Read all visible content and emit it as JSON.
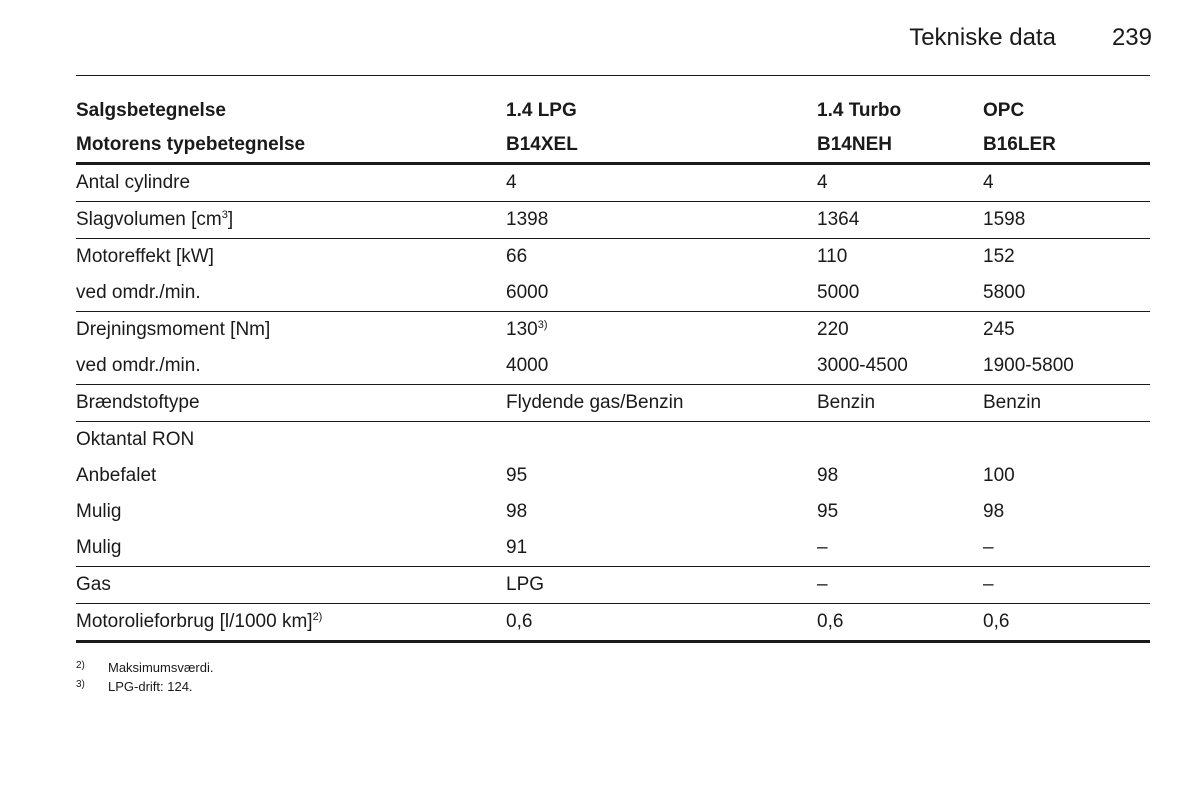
{
  "header": {
    "section_title": "Tekniske data",
    "page_number": "239"
  },
  "table": {
    "rows": [
      {
        "label": "Salgsbetegnelse",
        "v1": "1.4 LPG",
        "v2": "1.4 Turbo",
        "v3": "OPC"
      },
      {
        "label": "Motorens typebetegnelse",
        "v1": "B14XEL",
        "v2": "B14NEH",
        "v3": "B16LER"
      },
      {
        "label": "Antal cylindre",
        "v1": "4",
        "v2": "4",
        "v3": "4"
      },
      {
        "label": "Slagvolumen [cm",
        "label_sup": "3",
        "label_after": "]",
        "v1": "1398",
        "v2": "1364",
        "v3": "1598"
      },
      {
        "label": "Motoreffekt [kW]",
        "v1": "66",
        "v2": "110",
        "v3": "152"
      },
      {
        "label": "ved omdr./min.",
        "v1": "6000",
        "v2": "5000",
        "v3": "5800"
      },
      {
        "label": "Drejningsmoment [Nm]",
        "v1": "130",
        "v1_sup": "3)",
        "v2": "220",
        "v3": "245"
      },
      {
        "label": "ved omdr./min.",
        "v1": "4000",
        "v2": "3000-4500",
        "v3": "1900-5800"
      },
      {
        "label": "Brændstoftype",
        "v1": "Flydende gas/Benzin",
        "v2": "Benzin",
        "v3": "Benzin"
      },
      {
        "label": "Oktantal RON",
        "v1": "",
        "v2": "",
        "v3": ""
      },
      {
        "label": "Anbefalet",
        "v1": "95",
        "v2": "98",
        "v3": "100"
      },
      {
        "label": "Mulig",
        "v1": "98",
        "v2": "95",
        "v3": "98"
      },
      {
        "label": "Mulig",
        "v1": "91",
        "v2": "–",
        "v3": "–"
      },
      {
        "label": "Gas",
        "v1": "LPG",
        "v2": "–",
        "v3": "–"
      },
      {
        "label": "Motorolieforbrug [l/1000 km]",
        "label_sup": "2)",
        "v1": "0,6",
        "v2": "0,6",
        "v3": "0,6"
      }
    ]
  },
  "footnotes": [
    {
      "mark": "2)",
      "text": "Maksimumsværdi."
    },
    {
      "mark": "3)",
      "text": "LPG-drift: 124."
    }
  ]
}
